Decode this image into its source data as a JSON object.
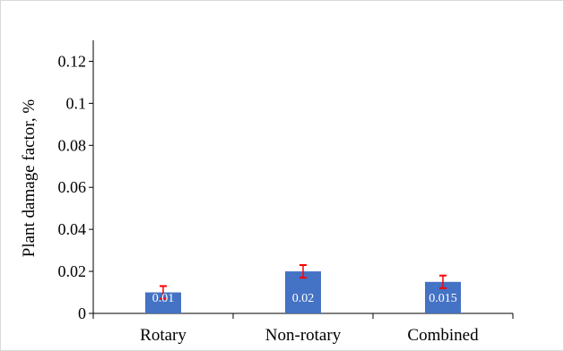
{
  "chart_data": {
    "type": "bar",
    "categories": [
      "Rotary",
      "Non-rotary",
      "Combined"
    ],
    "values": [
      0.01,
      0.02,
      0.015
    ],
    "data_labels": [
      "0.01",
      "0.02",
      "0.015"
    ],
    "error_high": [
      0.013,
      0.023,
      0.018
    ],
    "error_low": [
      0.007,
      0.017,
      0.012
    ],
    "title": "",
    "xlabel": "",
    "ylabel": "Plant damage factor, %",
    "ylim": [
      0,
      0.13
    ],
    "yticks": [
      0,
      0.02,
      0.04,
      0.06,
      0.08,
      0.1,
      0.12
    ],
    "ytick_labels": [
      "0",
      "0.02",
      "0.04",
      "0.06",
      "0.08",
      "0.1",
      "0.12"
    ],
    "grid": false,
    "bar_color": "#4472C4",
    "error_color": "#FF0000"
  }
}
